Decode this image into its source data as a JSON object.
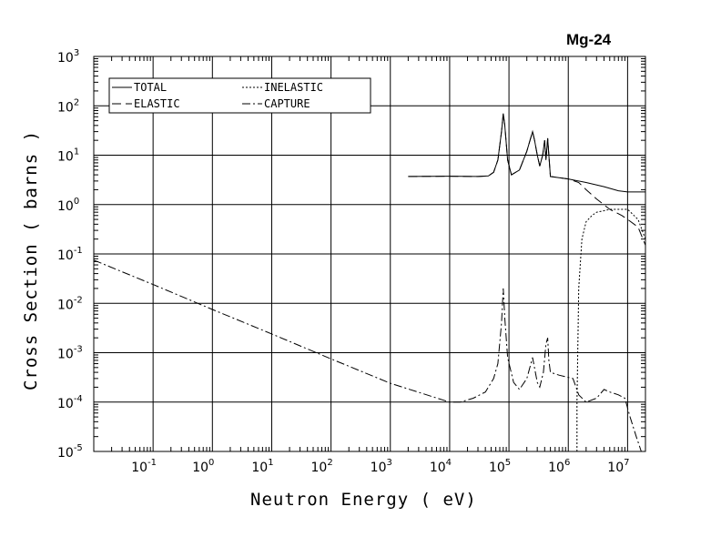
{
  "chart_data": {
    "type": "line",
    "title": "Mg-24",
    "xlabel": "Neutron Energy ( eV)",
    "ylabel": "Cross Section ( barns )",
    "xscale": "log",
    "yscale": "log",
    "xlim": [
      0.01,
      20000000
    ],
    "ylim": [
      1e-05,
      1000
    ],
    "x_tick_labels": [
      {
        "base": "10",
        "exp": "-1",
        "value": 0.1
      },
      {
        "base": "10",
        "exp": "0",
        "value": 1
      },
      {
        "base": "10",
        "exp": "1",
        "value": 10
      },
      {
        "base": "10",
        "exp": "2",
        "value": 100
      },
      {
        "base": "10",
        "exp": "3",
        "value": 1000
      },
      {
        "base": "10",
        "exp": "4",
        "value": 10000
      },
      {
        "base": "10",
        "exp": "5",
        "value": 100000
      },
      {
        "base": "10",
        "exp": "6",
        "value": 1000000
      },
      {
        "base": "10",
        "exp": "7",
        "value": 10000000
      }
    ],
    "y_tick_labels": [
      {
        "base": "10",
        "exp": "3",
        "value": 1000
      },
      {
        "base": "10",
        "exp": "2",
        "value": 100
      },
      {
        "base": "10",
        "exp": "1",
        "value": 10
      },
      {
        "base": "10",
        "exp": "0",
        "value": 1
      },
      {
        "base": "10",
        "exp": "-1",
        "value": 0.1
      },
      {
        "base": "10",
        "exp": "-2",
        "value": 0.01
      },
      {
        "base": "10",
        "exp": "-3",
        "value": 0.001
      },
      {
        "base": "10",
        "exp": "-4",
        "value": 0.0001
      },
      {
        "base": "10",
        "exp": "-5",
        "value": 1e-05
      }
    ],
    "grid": true,
    "legend_position": "top-left",
    "series": [
      {
        "name": "TOTAL",
        "dash": "solid",
        "points": [
          [
            2000,
            3.7
          ],
          [
            10000,
            3.75
          ],
          [
            30000,
            3.7
          ],
          [
            45000,
            3.8
          ],
          [
            55000,
            4.5
          ],
          [
            65000,
            8
          ],
          [
            75000,
            30
          ],
          [
            80000,
            70
          ],
          [
            85000,
            40
          ],
          [
            95000,
            8
          ],
          [
            110000,
            4
          ],
          [
            150000,
            5
          ],
          [
            200000,
            12
          ],
          [
            250000,
            30
          ],
          [
            270000,
            20
          ],
          [
            300000,
            10
          ],
          [
            330000,
            6
          ],
          [
            370000,
            10
          ],
          [
            400000,
            20
          ],
          [
            420000,
            8
          ],
          [
            450000,
            22
          ],
          [
            470000,
            10
          ],
          [
            500000,
            3.7
          ],
          [
            700000,
            3.5
          ],
          [
            1000000,
            3.3
          ],
          [
            2000000,
            2.8
          ],
          [
            4000000,
            2.3
          ],
          [
            7000000,
            1.9
          ],
          [
            10000000,
            1.8
          ],
          [
            20000000,
            1.8
          ]
        ]
      },
      {
        "name": "ELASTIC",
        "dash": "dashed",
        "points": [
          [
            2000,
            3.7
          ],
          [
            10000,
            3.75
          ],
          [
            30000,
            3.7
          ],
          [
            45000,
            3.8
          ],
          [
            55000,
            4.5
          ],
          [
            65000,
            8
          ],
          [
            75000,
            30
          ],
          [
            80000,
            70
          ],
          [
            85000,
            40
          ],
          [
            95000,
            8
          ],
          [
            110000,
            4
          ],
          [
            150000,
            5
          ],
          [
            200000,
            12
          ],
          [
            250000,
            30
          ],
          [
            270000,
            20
          ],
          [
            300000,
            10
          ],
          [
            330000,
            6
          ],
          [
            370000,
            10
          ],
          [
            400000,
            20
          ],
          [
            420000,
            8
          ],
          [
            450000,
            22
          ],
          [
            470000,
            10
          ],
          [
            500000,
            3.7
          ],
          [
            700000,
            3.5
          ],
          [
            1000000,
            3.3
          ],
          [
            1500000,
            2.8
          ],
          [
            2000000,
            2.0
          ],
          [
            3000000,
            1.3
          ],
          [
            5000000,
            0.8
          ],
          [
            8000000,
            0.6
          ],
          [
            10000000,
            0.5
          ],
          [
            15000000,
            0.35
          ],
          [
            20000000,
            0.15
          ]
        ]
      },
      {
        "name": "INELASTIC",
        "dash": "dotted",
        "points": [
          [
            1400000,
            1e-05
          ],
          [
            1400000,
            0.0001
          ],
          [
            1500000,
            0.02
          ],
          [
            1700000,
            0.2
          ],
          [
            2000000,
            0.45
          ],
          [
            2500000,
            0.6
          ],
          [
            3000000,
            0.7
          ],
          [
            4000000,
            0.75
          ],
          [
            5000000,
            0.8
          ],
          [
            6000000,
            0.8
          ],
          [
            8000000,
            0.8
          ],
          [
            10000000,
            0.8
          ],
          [
            15000000,
            0.5
          ],
          [
            20000000,
            0.2
          ]
        ]
      },
      {
        "name": "CAPTURE",
        "dash": "dashdot",
        "points": [
          [
            0.01,
            0.075
          ],
          [
            0.1,
            0.024
          ],
          [
            1,
            0.0075
          ],
          [
            10,
            0.0024
          ],
          [
            100,
            0.00075
          ],
          [
            1000,
            0.00024
          ],
          [
            5000,
            0.00013
          ],
          [
            10000,
            0.0001
          ],
          [
            15000,
            0.0001
          ],
          [
            25000,
            0.00012
          ],
          [
            40000,
            0.00016
          ],
          [
            55000,
            0.0003
          ],
          [
            65000,
            0.0006
          ],
          [
            75000,
            0.004
          ],
          [
            80000,
            0.02
          ],
          [
            85000,
            0.005
          ],
          [
            95000,
            0.0008
          ],
          [
            120000,
            0.00025
          ],
          [
            150000,
            0.00018
          ],
          [
            200000,
            0.0003
          ],
          [
            250000,
            0.0008
          ],
          [
            300000,
            0.00025
          ],
          [
            330000,
            0.0002
          ],
          [
            380000,
            0.0004
          ],
          [
            420000,
            0.0015
          ],
          [
            450000,
            0.002
          ],
          [
            470000,
            0.0007
          ],
          [
            500000,
            0.0004
          ],
          [
            700000,
            0.00035
          ],
          [
            1200000,
            0.0003
          ],
          [
            1500000,
            0.00014
          ],
          [
            2000000,
            0.0001
          ],
          [
            3000000,
            0.00012
          ],
          [
            4000000,
            0.00018
          ],
          [
            5000000,
            0.00016
          ],
          [
            7000000,
            0.00014
          ],
          [
            9000000,
            0.00012
          ],
          [
            11000000,
            5e-05
          ],
          [
            14000000,
            2e-05
          ],
          [
            17000000,
            1e-05
          ]
        ]
      }
    ]
  }
}
